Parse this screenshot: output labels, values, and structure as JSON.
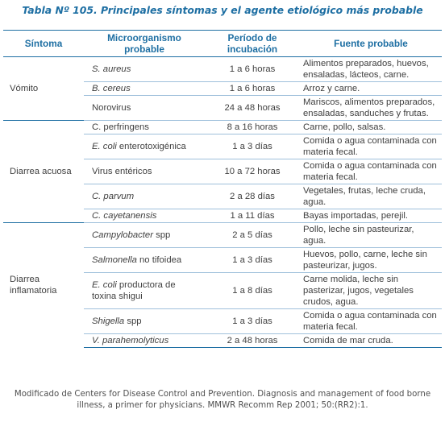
{
  "caption": "Tabla Nº 105. Principales síntomas y el agente etiológico más probable",
  "headers": {
    "symptom": "Síntoma",
    "organism": "Microorganismo probable",
    "period": "Período de incubación",
    "source": "Fuente probable"
  },
  "groups": [
    {
      "symptom": "Vómito",
      "rows": [
        {
          "organism": "S. aureus",
          "organism_rest": "",
          "period": "1 a 6 horas",
          "source": "Alimentos preparados, huevos, ensaladas, lácteos, carne."
        },
        {
          "organism": "B. cereus",
          "organism_rest": "",
          "period": "1 a 6 horas",
          "source": "Arroz y carne."
        },
        {
          "organism": "",
          "organism_rest": "Norovirus",
          "period": "24 a 48 horas",
          "source": "Mariscos, alimentos preparados, ensaladas, sanduches y frutas."
        }
      ]
    },
    {
      "symptom": "Diarrea acuosa",
      "rows": [
        {
          "organism": "",
          "organism_rest": "C. perfringens",
          "period": "8 a 16 horas",
          "source": "Carne, pollo, salsas."
        },
        {
          "organism": "E. coli",
          "organism_rest": " enterotoxigénica",
          "period": "1 a 3 días",
          "source": "Comida o agua contaminada con materia fecal."
        },
        {
          "organism": "",
          "organism_rest": "Virus entéricos",
          "period": "10 a 72 horas",
          "source": "Comida o agua contaminada con materia fecal."
        },
        {
          "organism": "C. parvum",
          "organism_rest": "",
          "period": "2 a 28 días",
          "source": "Vegetales, frutas, leche cruda, agua."
        },
        {
          "organism": "C. cayetanensis",
          "organism_rest": "",
          "period": "1 a 11 días",
          "source": "Bayas importadas, perejil."
        }
      ]
    },
    {
      "symptom": "Diarrea inflamatoria",
      "rows": [
        {
          "organism": "Campylobacter",
          "organism_rest": " spp",
          "period": "2 a 5 días",
          "source": "Pollo, leche sin pasteurizar, agua."
        },
        {
          "organism": "Salmonella",
          "organism_rest": " no tifoidea",
          "period": "1 a 3 días",
          "source": "Huevos, pollo, carne, leche sin pasteurizar, jugos."
        },
        {
          "organism": "E. coli",
          "organism_rest": " productora de toxina shigui",
          "period": "1 a 8 días",
          "source": "Carne molida, leche sin pasterizar, jugos, vegetales crudos, agua."
        },
        {
          "organism": "Shigella",
          "organism_rest": " spp",
          "period": "1 a 3 días",
          "source": "Comida o agua contaminada con materia fecal."
        },
        {
          "organism": "V. parahemolyticus",
          "organism_rest": "",
          "period": "2 a 48 horas",
          "source": "Comida de mar cruda."
        }
      ]
    }
  ],
  "footnote": "Modificado de Centers for Disease Control and Prevention. Diagnosis and management of food borne illness, a primer for physicians. MMWR Recomm Rep 2001; 50:(RR2):1."
}
